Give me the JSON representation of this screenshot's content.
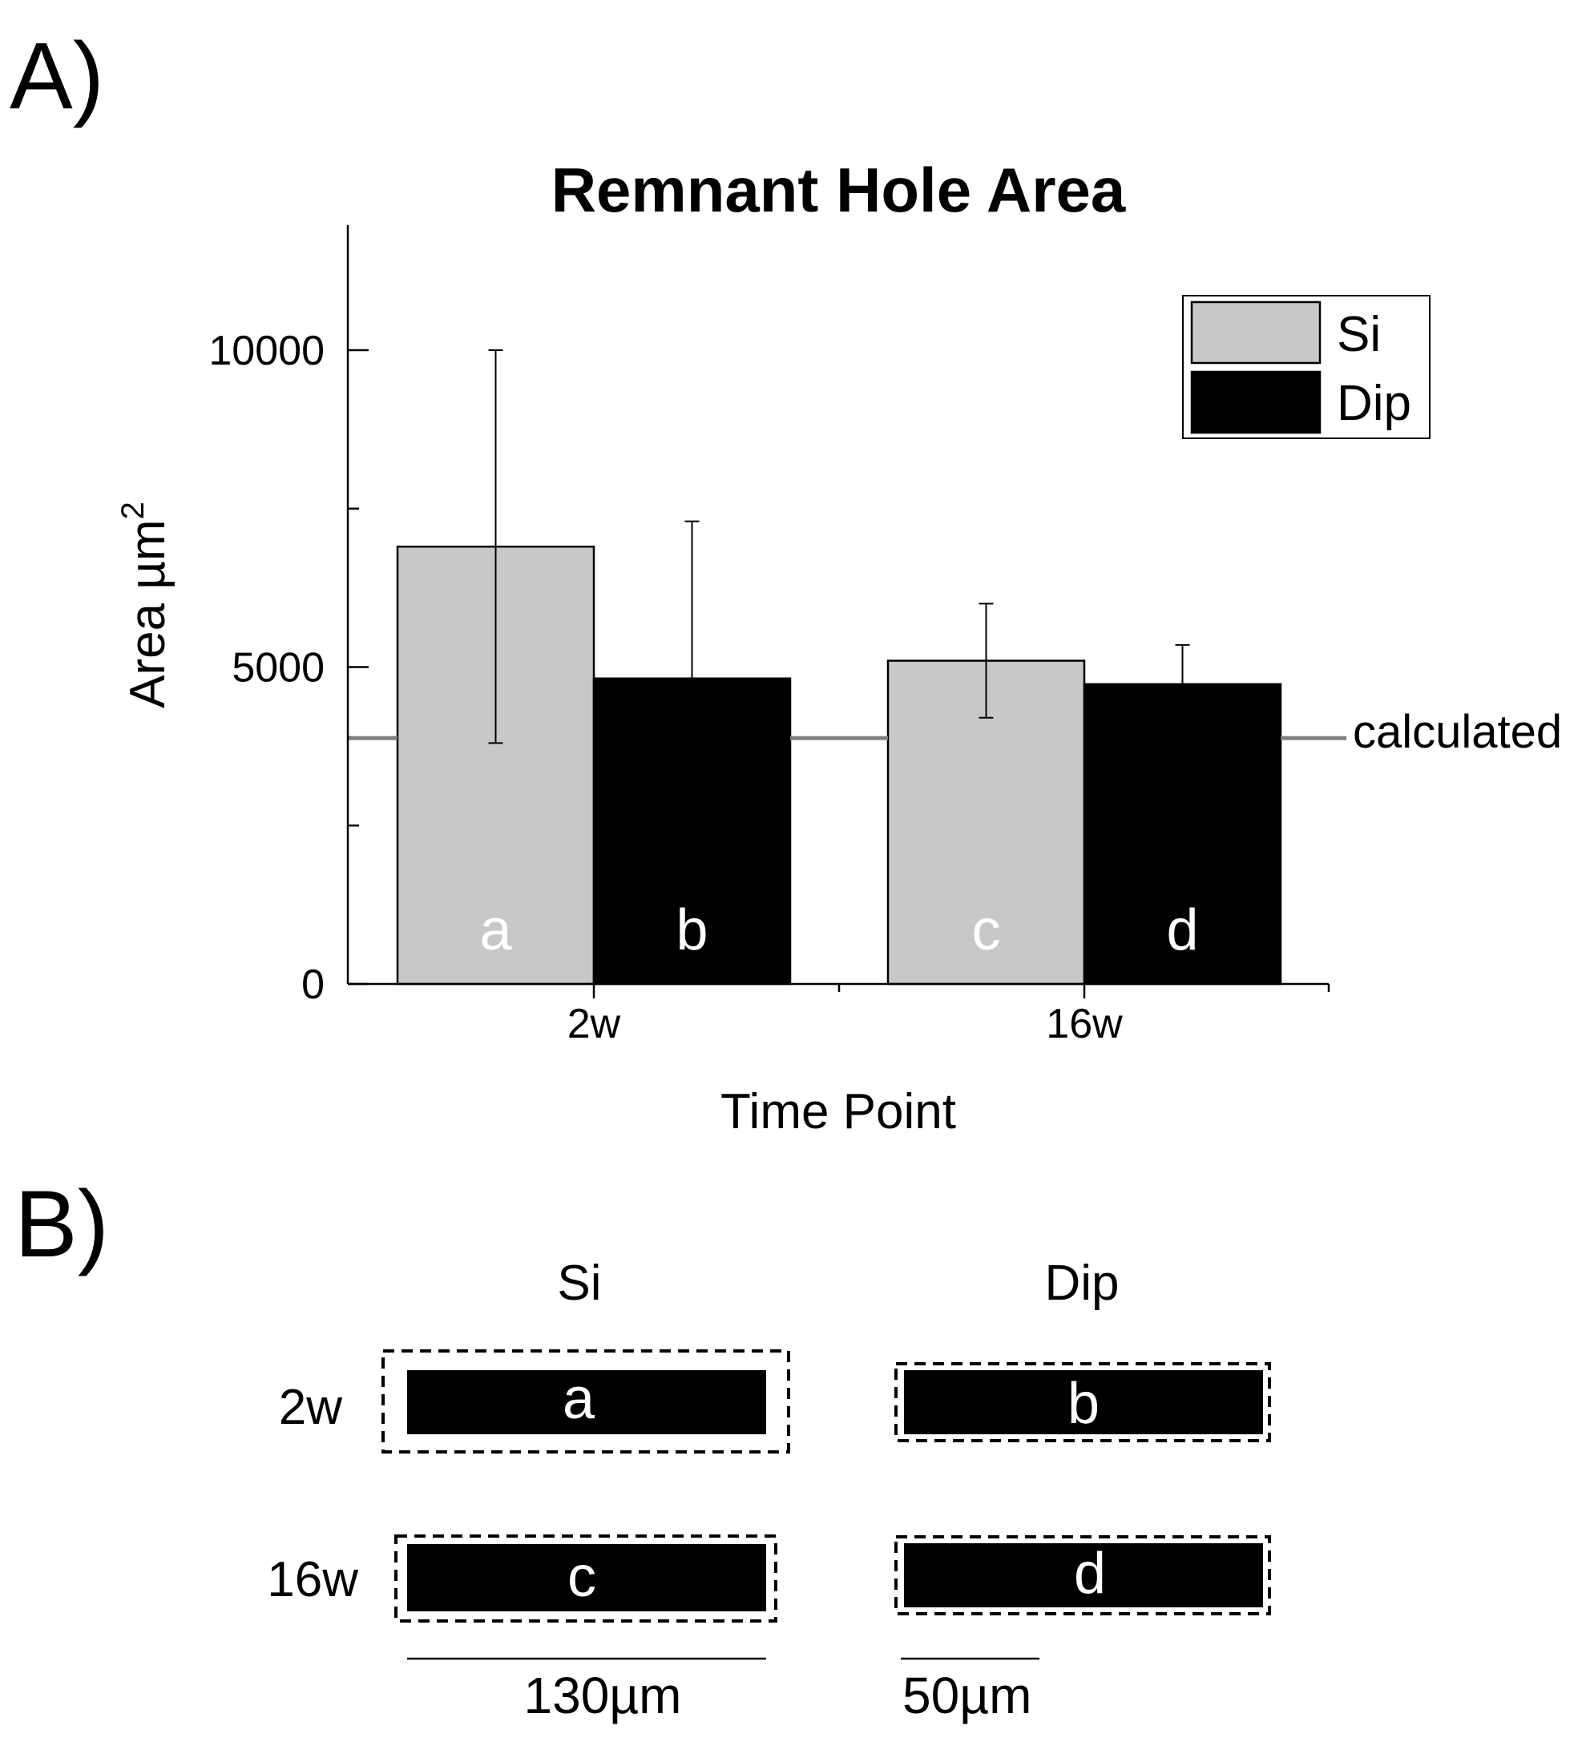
{
  "panel_a_label": "A)",
  "panel_b_label": "B)",
  "chart_data": {
    "type": "bar",
    "title": "Remnant Hole Area",
    "xlabel": "Time Point",
    "ylabel": "Area µm",
    "ylabel_superscript": "2",
    "categories": [
      "2w",
      "16w"
    ],
    "ylim": [
      0,
      12000
    ],
    "yticks": [
      0,
      5000,
      10000
    ],
    "yticks_labels": [
      "0",
      "5000",
      "10000"
    ],
    "legend_position": "top-right",
    "series": [
      {
        "name": "Si",
        "color": "#c8c8c8",
        "values": [
          6900,
          5100
        ],
        "error_high": [
          10000,
          6000
        ],
        "error_low": [
          3800,
          4200
        ],
        "bar_labels": [
          "a",
          "c"
        ]
      },
      {
        "name": "Dip",
        "color": "#000000",
        "values": [
          4820,
          4730
        ],
        "error_high": [
          7300,
          5350
        ],
        "error_low": [
          4820,
          4730
        ],
        "bar_labels": [
          "b",
          "d"
        ]
      }
    ],
    "reference_line": {
      "value": 3880,
      "label": "calculated",
      "color": "#808080"
    }
  },
  "panel_b": {
    "column_headers": [
      "Si",
      "Dip"
    ],
    "row_labels": [
      "2w",
      "16w"
    ],
    "box_labels": [
      "a",
      "b",
      "c",
      "d"
    ],
    "scale_bars": [
      "130µm",
      "50µm"
    ]
  }
}
